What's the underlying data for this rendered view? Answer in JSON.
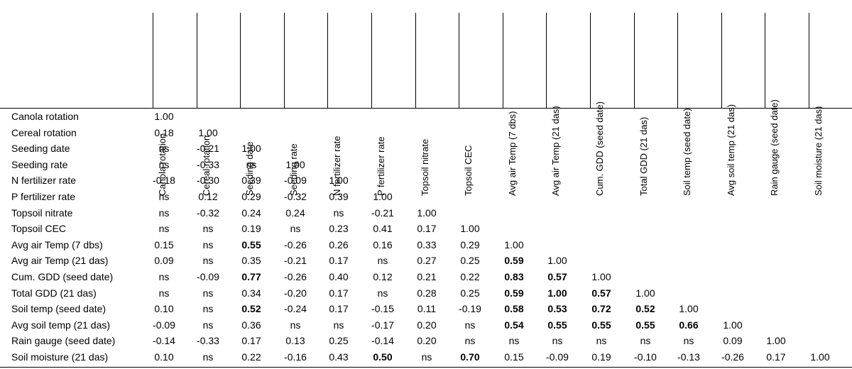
{
  "chart_data": {
    "type": "table",
    "variables": [
      "Canola rotation",
      "Cereal rotation",
      "Seeding date",
      "Seeding rate",
      "N fertilizer rate",
      "P fertilizer rate",
      "Topsoil nitrate",
      "Topsoil CEC",
      "Avg air Temp (7 dbs)",
      "Avg air Temp (21 das)",
      "Cum. GDD (seed date)",
      "Total GDD (21 das)",
      "Soil temp (seed date)",
      "Avg soil temp (21 das)",
      "Rain gauge (seed date)",
      "Soil moisture (21 das)"
    ],
    "matrix": [
      [
        "1.00"
      ],
      [
        "0.18",
        "1.00"
      ],
      [
        "ns",
        "-0.21",
        "1.00"
      ],
      [
        "ns",
        "-0.33",
        "ns",
        "1.00"
      ],
      [
        "-0.18",
        "-0.30",
        "0.39",
        "-0.09",
        "1.00"
      ],
      [
        "ns",
        "0.12",
        "0.29",
        "-0.32",
        "0.39",
        "1.00"
      ],
      [
        "ns",
        "-0.32",
        "0.24",
        "0.24",
        "ns",
        "-0.21",
        "1.00"
      ],
      [
        "ns",
        "ns",
        "0.19",
        "ns",
        "0.23",
        "0.41",
        "0.17",
        "1.00"
      ],
      [
        "0.15",
        "ns",
        "0.55",
        "-0.26",
        "0.26",
        "0.16",
        "0.33",
        "0.29",
        "1.00"
      ],
      [
        "0.09",
        "ns",
        "0.35",
        "-0.21",
        "0.17",
        "ns",
        "0.27",
        "0.25",
        "0.59",
        "1.00"
      ],
      [
        "ns",
        "-0.09",
        "0.77",
        "-0.26",
        "0.40",
        "0.12",
        "0.21",
        "0.22",
        "0.83",
        "0.57",
        "1.00"
      ],
      [
        "ns",
        "ns",
        "0.34",
        "-0.20",
        "0.17",
        "ns",
        "0.28",
        "0.25",
        "0.59",
        "1.00",
        "0.57",
        "1.00"
      ],
      [
        "0.10",
        "ns",
        "0.52",
        "-0.24",
        "0.17",
        "-0.15",
        "0.11",
        "-0.19",
        "0.58",
        "0.53",
        "0.72",
        "0.52",
        "1.00"
      ],
      [
        "-0.09",
        "ns",
        "0.36",
        "ns",
        "ns",
        "-0.17",
        "0.20",
        "ns",
        "0.54",
        "0.55",
        "0.55",
        "0.55",
        "0.66",
        "1.00"
      ],
      [
        "-0.14",
        "-0.33",
        "0.17",
        "0.13",
        "0.25",
        "-0.14",
        "0.20",
        "ns",
        "ns",
        "ns",
        "ns",
        "ns",
        "ns",
        "0.09",
        "1.00"
      ],
      [
        "0.10",
        "ns",
        "0.22",
        "-0.16",
        "0.43",
        "0.50",
        "ns",
        "0.70",
        "0.15",
        "-0.09",
        "0.19",
        "-0.10",
        "-0.13",
        "-0.26",
        "0.17",
        "1.00"
      ]
    ],
    "bold_cells": [
      [
        8,
        2
      ],
      [
        9,
        8
      ],
      [
        10,
        2
      ],
      [
        10,
        8
      ],
      [
        10,
        9
      ],
      [
        11,
        8
      ],
      [
        11,
        9
      ],
      [
        11,
        10
      ],
      [
        12,
        2
      ],
      [
        12,
        8
      ],
      [
        12,
        9
      ],
      [
        12,
        10
      ],
      [
        12,
        11
      ],
      [
        13,
        8
      ],
      [
        13,
        9
      ],
      [
        13,
        10
      ],
      [
        13,
        11
      ],
      [
        13,
        12
      ],
      [
        15,
        5
      ],
      [
        15,
        7
      ]
    ],
    "grid": false
  }
}
